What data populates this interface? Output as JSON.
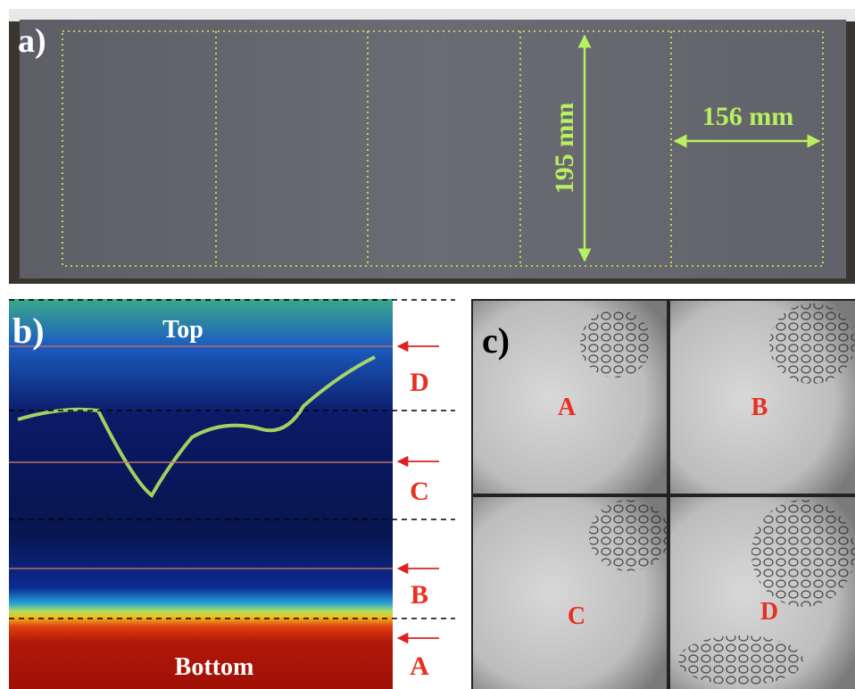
{
  "panel_a": {
    "label": "a)",
    "height_label": "195 mm",
    "width_label": "156 mm"
  },
  "panel_b": {
    "label": "b)",
    "top_label": "Top",
    "bottom_label": "Bottom",
    "zones": [
      "D",
      "C",
      "B",
      "A"
    ]
  },
  "panel_c": {
    "label": "c)",
    "cells": [
      "A",
      "B",
      "C",
      "D"
    ]
  }
}
